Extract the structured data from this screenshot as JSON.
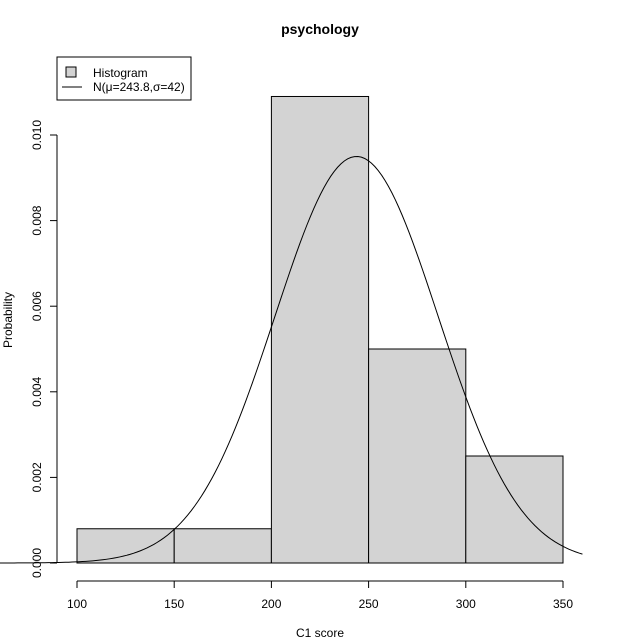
{
  "chart_data": {
    "type": "bar",
    "title": "psychology",
    "xlabel": "C1 score",
    "ylabel": "Probability",
    "bins": [
      {
        "start": 100,
        "end": 150,
        "density": 0.0008
      },
      {
        "start": 150,
        "end": 200,
        "density": 0.0008
      },
      {
        "start": 200,
        "end": 250,
        "density": 0.0109
      },
      {
        "start": 250,
        "end": 300,
        "density": 0.005
      },
      {
        "start": 300,
        "end": 350,
        "density": 0.0025
      }
    ],
    "normal_curve": {
      "mean": 243.8,
      "sd": 42,
      "x_range": [
        10,
        360
      ]
    },
    "xlim": [
      90,
      360
    ],
    "ylim": [
      0,
      0.0109
    ],
    "xticks": [
      100,
      150,
      200,
      250,
      300,
      350
    ],
    "yticks": [
      0.0,
      0.002,
      0.004,
      0.006,
      0.008,
      0.01
    ],
    "ytick_labels": [
      "0.000",
      "0.002",
      "0.004",
      "0.006",
      "0.008",
      "0.010"
    ],
    "legend": {
      "placement": "top-left",
      "entries": [
        {
          "label": "Histogram",
          "kind": "box"
        },
        {
          "label": "N(μ=243.8,σ=42)",
          "kind": "line"
        }
      ]
    },
    "colors": {
      "bar_fill": "#d3d3d3",
      "bar_stroke": "#000000",
      "curve": "#000000"
    }
  }
}
